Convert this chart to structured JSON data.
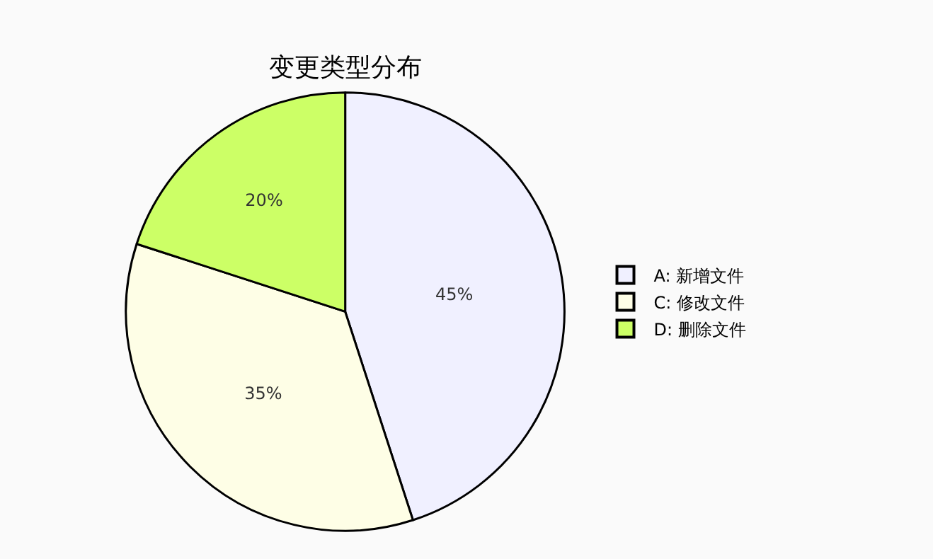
{
  "chart_data": {
    "type": "pie",
    "title": "变更类型分布",
    "categories": [
      "A: 新增文件",
      "C: 修改文件",
      "D: 删除文件"
    ],
    "values": [
      45,
      35,
      20
    ],
    "colors": [
      "#f0f0ff",
      "#fefee6",
      "#ccff66"
    ],
    "value_labels": [
      "45%",
      "35%",
      "20%"
    ],
    "legend": "right"
  }
}
